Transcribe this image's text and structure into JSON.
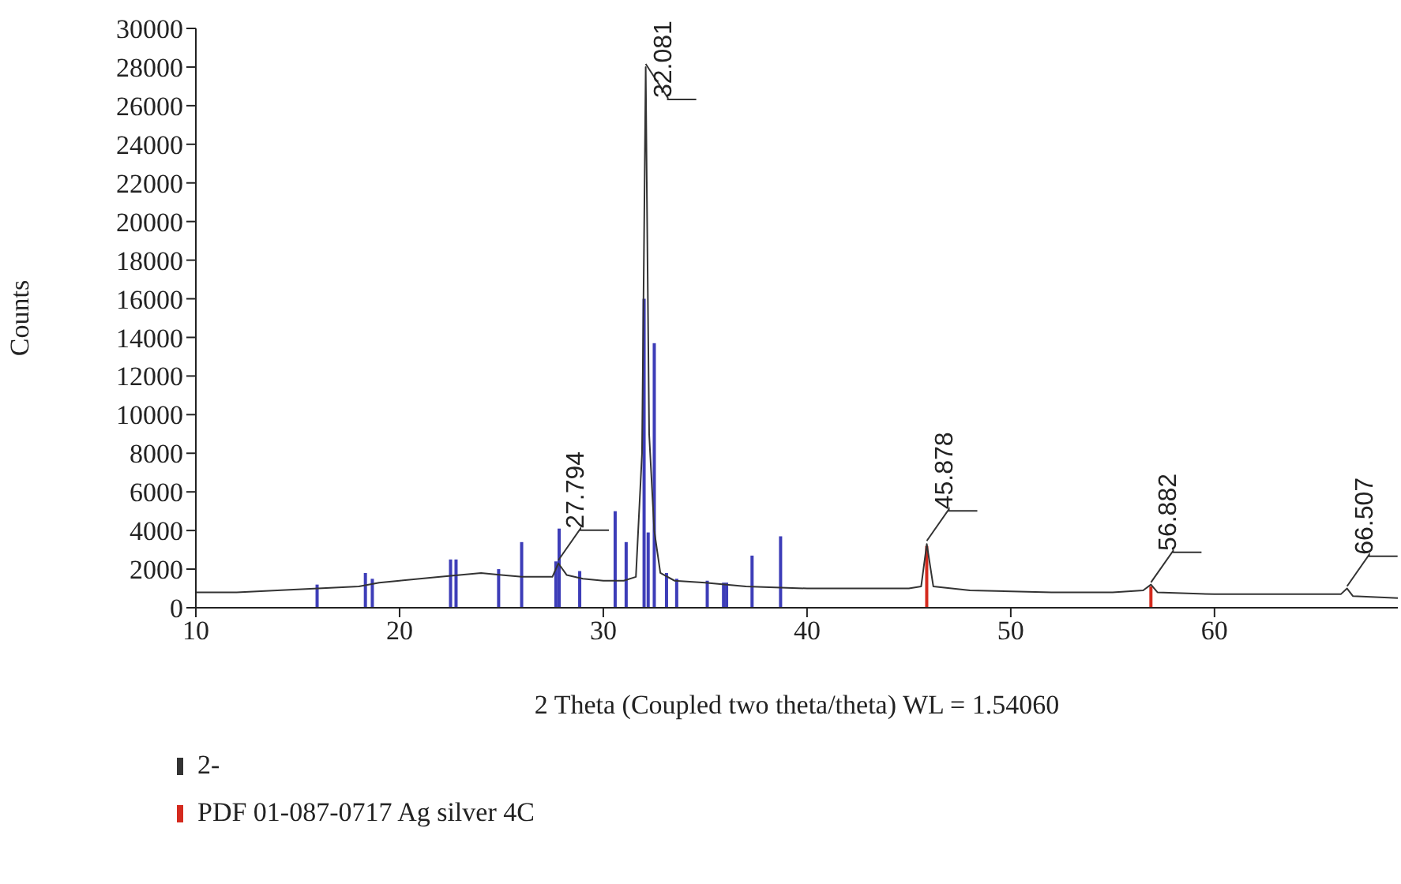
{
  "chart_data": {
    "type": "line",
    "xlabel": "2 Theta (Coupled two theta/theta) WL = 1.54060",
    "ylabel": "Counts",
    "xlim": [
      10,
      69
    ],
    "xticks": [
      10,
      20,
      30,
      40,
      50,
      60
    ],
    "ylim": [
      0,
      30000
    ],
    "yticks": [
      0,
      2000,
      4000,
      6000,
      8000,
      10000,
      12000,
      14000,
      16000,
      18000,
      20000,
      22000,
      24000,
      26000,
      28000,
      30000
    ],
    "grid": false,
    "legend": "bottom",
    "series": [
      {
        "name": "2-",
        "color": "#333333",
        "x": [
          10,
          12,
          14,
          16,
          18,
          19,
          20,
          22,
          24,
          25,
          26,
          27,
          27.5,
          27.794,
          28.2,
          29,
          30,
          31,
          31.6,
          31.9,
          32.081,
          32.25,
          32.5,
          32.8,
          33.5,
          35,
          37,
          40,
          43,
          45,
          45.6,
          45.878,
          46.2,
          48,
          52,
          55,
          56.5,
          56.882,
          57.2,
          60,
          63,
          66.2,
          66.507,
          66.8,
          69
        ],
        "values": [
          800,
          800,
          900,
          1000,
          1100,
          1300,
          1400,
          1600,
          1800,
          1700,
          1600,
          1600,
          1600,
          2300,
          1700,
          1500,
          1400,
          1400,
          1600,
          8000,
          28000,
          9000,
          4000,
          1800,
          1400,
          1300,
          1100,
          1000,
          1000,
          1000,
          1100,
          3300,
          1100,
          900,
          800,
          800,
          900,
          1200,
          800,
          700,
          700,
          700,
          1000,
          600,
          500
        ]
      },
      {
        "name": "PDF 01-087-0717 Ag silver 4C",
        "type": "bar",
        "color": "#d42a1e",
        "x": [
          45.878,
          56.882
        ],
        "values": [
          3200,
          1100
        ]
      },
      {
        "type": "bar",
        "color": "#3d3db8",
        "x": [
          15.95,
          18.32,
          18.66,
          22.5,
          22.77,
          24.86,
          25.99,
          27.67,
          27.83,
          28.84,
          30.58,
          31.12,
          32.0,
          32.2,
          32.5,
          33.1,
          33.6,
          35.1,
          35.9,
          36.05,
          37.3,
          38.7
        ],
        "values": [
          1200,
          1800,
          1500,
          2500,
          2500,
          2000,
          3400,
          2400,
          4100,
          1900,
          5000,
          3400,
          16000,
          3900,
          13700,
          1800,
          1500,
          1400,
          1300,
          1300,
          2700,
          3700
        ]
      }
    ],
    "annotations": [
      {
        "text": "27.794",
        "x": 27.794,
        "y": 2300
      },
      {
        "text": "32.081",
        "x": 32.081,
        "y": 28000
      },
      {
        "text": "45.878",
        "x": 45.878,
        "y": 3300
      },
      {
        "text": "56.882",
        "x": 56.882,
        "y": 1150
      },
      {
        "text": "66.507",
        "x": 66.507,
        "y": 950
      }
    ]
  }
}
